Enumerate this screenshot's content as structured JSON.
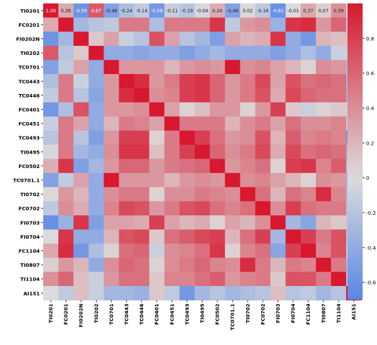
{
  "chart_data": {
    "type": "heatmap",
    "title": "",
    "xlabel": "",
    "ylabel": "",
    "labels": [
      "TI0201",
      "FC0201",
      "FI0202N",
      "TI0202",
      "TC0701",
      "TC0443",
      "TC0446",
      "FC0401",
      "FC0451",
      "TC0493",
      "TI0495",
      "FC0502",
      "TC0701.1",
      "TI0702",
      "FC0702",
      "FI0703",
      "FI0704",
      "FC1104",
      "TI0807",
      "TI1104",
      "AI151"
    ],
    "first_row_annotations": [
      "1.00",
      "0.26",
      "-0.59",
      "0.67",
      "-0.48",
      "-0.24",
      "-0.14",
      "-0.56",
      "-0.11",
      "-0.19",
      "-0.04",
      "0.24",
      "-0.48",
      "0.02",
      "-0.16",
      "-0.61",
      "-0.01",
      "0.27",
      "0.07",
      "0.39",
      "-0.01"
    ],
    "matrix": [
      [
        1.0,
        0.26,
        -0.59,
        0.67,
        -0.48,
        -0.24,
        -0.14,
        -0.56,
        -0.11,
        -0.19,
        -0.04,
        0.24,
        -0.48,
        0.02,
        -0.16,
        -0.61,
        -0.01,
        0.27,
        0.07,
        0.39,
        -0.01
      ],
      [
        0.26,
        1.0,
        -0.3,
        -0.2,
        -0.15,
        0.5,
        0.5,
        -0.25,
        0.5,
        0.5,
        0.5,
        0.85,
        -0.15,
        0.35,
        0.4,
        -0.35,
        0.85,
        0.9,
        0.35,
        0.6,
        -0.15
      ],
      [
        -0.59,
        -0.3,
        1.0,
        0.1,
        0.3,
        -0.1,
        -0.2,
        0.7,
        0.3,
        -0.2,
        -0.3,
        -0.5,
        0.3,
        0.2,
        0.25,
        0.85,
        -0.4,
        -0.55,
        0.2,
        0.15,
        0.15
      ],
      [
        0.67,
        -0.2,
        0.1,
        1.0,
        -0.4,
        -0.4,
        -0.45,
        -0.4,
        -0.4,
        -0.5,
        -0.4,
        -0.3,
        -0.4,
        -0.4,
        -0.4,
        -0.5,
        -0.4,
        -0.25,
        -0.4,
        -0.1,
        -0.1
      ],
      [
        -0.48,
        -0.15,
        0.3,
        -0.4,
        1.0,
        0.35,
        0.35,
        0.35,
        0.2,
        0.35,
        0.4,
        0.35,
        1.0,
        0.4,
        0.45,
        0.3,
        0.2,
        0.05,
        0.4,
        0.35,
        -0.3
      ],
      [
        -0.24,
        0.5,
        -0.1,
        -0.4,
        0.35,
        1.0,
        0.9,
        0.35,
        0.5,
        0.8,
        0.85,
        0.6,
        0.35,
        0.5,
        0.75,
        0.3,
        0.7,
        0.55,
        0.6,
        0.55,
        -0.3
      ],
      [
        -0.14,
        0.5,
        -0.2,
        -0.45,
        0.35,
        0.9,
        1.0,
        0.4,
        0.45,
        0.8,
        0.85,
        0.6,
        0.35,
        0.5,
        0.7,
        0.25,
        0.75,
        0.6,
        0.55,
        0.55,
        -0.35
      ],
      [
        -0.56,
        -0.25,
        0.7,
        -0.4,
        0.35,
        0.35,
        0.4,
        1.0,
        0.3,
        0.05,
        0.15,
        0.35,
        0.35,
        0.05,
        0.35,
        0.8,
        0.1,
        -0.1,
        0.05,
        0.1,
        0.1
      ],
      [
        -0.11,
        0.5,
        0.3,
        -0.4,
        0.2,
        0.5,
        0.45,
        0.3,
        1.0,
        0.5,
        0.5,
        0.5,
        0.2,
        0.4,
        0.5,
        0.3,
        0.55,
        0.4,
        0.4,
        0.45,
        -0.15
      ],
      [
        -0.19,
        0.5,
        -0.2,
        -0.5,
        0.35,
        0.8,
        0.8,
        0.05,
        0.5,
        1.0,
        0.8,
        0.55,
        0.35,
        0.4,
        0.7,
        0.2,
        0.65,
        0.45,
        0.5,
        0.45,
        -0.55
      ],
      [
        -0.04,
        0.5,
        -0.3,
        -0.4,
        0.4,
        0.85,
        0.85,
        0.15,
        0.5,
        0.8,
        1.0,
        0.6,
        0.4,
        0.5,
        0.75,
        0.25,
        0.75,
        0.55,
        0.6,
        0.55,
        -0.3
      ],
      [
        0.24,
        0.85,
        -0.5,
        -0.3,
        0.35,
        0.6,
        0.6,
        0.35,
        0.5,
        0.55,
        0.6,
        1.0,
        0.35,
        0.45,
        0.55,
        0.05,
        0.8,
        0.85,
        0.45,
        0.65,
        -0.2
      ],
      [
        -0.48,
        -0.15,
        0.3,
        -0.4,
        1.0,
        0.35,
        0.35,
        0.35,
        0.2,
        0.35,
        0.4,
        0.35,
        1.0,
        0.4,
        0.45,
        0.3,
        0.2,
        0.05,
        0.4,
        0.35,
        -0.3
      ],
      [
        0.02,
        0.35,
        0.2,
        -0.4,
        0.4,
        0.5,
        0.5,
        0.05,
        0.4,
        0.4,
        0.5,
        0.45,
        0.4,
        1.0,
        0.55,
        0.2,
        0.55,
        0.45,
        0.9,
        0.45,
        -0.25
      ],
      [
        -0.16,
        0.4,
        0.25,
        -0.4,
        0.45,
        0.75,
        0.7,
        0.35,
        0.5,
        0.7,
        0.75,
        0.55,
        0.45,
        0.55,
        1.0,
        0.4,
        0.8,
        0.55,
        0.5,
        0.5,
        -0.2
      ],
      [
        -0.61,
        -0.35,
        0.85,
        -0.5,
        0.3,
        0.3,
        0.25,
        0.8,
        0.3,
        0.2,
        0.25,
        0.05,
        0.3,
        0.2,
        0.4,
        1.0,
        -0.3,
        -0.45,
        0.2,
        0.1,
        0.15
      ],
      [
        -0.01,
        0.85,
        -0.4,
        -0.4,
        0.2,
        0.7,
        0.75,
        0.1,
        0.55,
        0.65,
        0.75,
        0.8,
        0.2,
        0.55,
        0.8,
        -0.3,
        1.0,
        0.8,
        0.5,
        0.7,
        -0.2
      ],
      [
        0.27,
        0.9,
        -0.55,
        -0.25,
        0.05,
        0.55,
        0.6,
        -0.1,
        0.4,
        0.45,
        0.55,
        0.85,
        0.05,
        0.45,
        0.55,
        -0.45,
        0.8,
        1.0,
        0.45,
        0.7,
        -0.15
      ],
      [
        0.07,
        0.35,
        0.2,
        -0.4,
        0.4,
        0.6,
        0.55,
        0.05,
        0.4,
        0.5,
        0.6,
        0.45,
        0.4,
        0.9,
        0.5,
        0.2,
        0.5,
        0.45,
        1.0,
        0.5,
        -0.3
      ],
      [
        0.39,
        0.6,
        0.15,
        -0.1,
        0.35,
        0.55,
        0.55,
        0.1,
        0.45,
        0.45,
        0.55,
        0.65,
        0.35,
        0.45,
        0.5,
        0.1,
        0.7,
        0.7,
        0.5,
        1.0,
        -0.2
      ],
      [
        -0.01,
        -0.15,
        0.15,
        -0.1,
        -0.3,
        -0.3,
        -0.35,
        0.1,
        -0.15,
        -0.55,
        -0.3,
        -0.2,
        -0.3,
        -0.25,
        -0.2,
        0.15,
        -0.2,
        -0.15,
        -0.3,
        -0.2,
        1.0
      ]
    ],
    "vmin": -0.7,
    "vmax": 1.0,
    "colorbar_ticks": [
      "0.8",
      "0.6",
      "0.4",
      "0.2",
      "0",
      "-0.2",
      "-0.4",
      "-0.6"
    ],
    "colorbar_tick_values": [
      0.8,
      0.6,
      0.4,
      0.2,
      0.0,
      -0.2,
      -0.4,
      -0.6
    ],
    "colormap": "coolwarm",
    "colors": {
      "low": "#5a86e6",
      "mid": "#dcdcdc",
      "high": "#d7182f"
    }
  }
}
